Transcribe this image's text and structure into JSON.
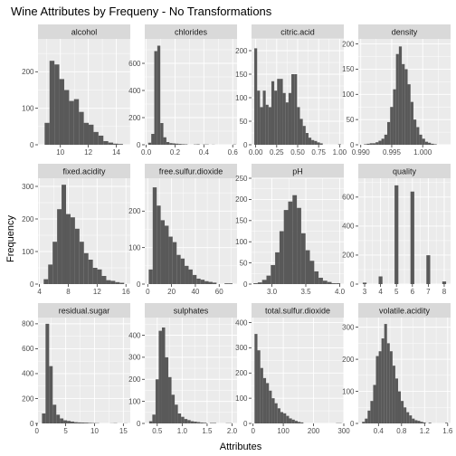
{
  "chart_data": {
    "type": "bar",
    "title": "Wine Attributes by Frequeny - No Transformations",
    "xlabel": "Attributes",
    "ylabel": "Frequency",
    "style": {
      "panel_bg": "#ebebeb",
      "strip_bg": "#d9d9d9",
      "bar_fill": "#595959",
      "grid": "#ffffff"
    },
    "facets": [
      {
        "name": "alcohol",
        "xlim": [
          8.4,
          15.0
        ],
        "ylim": [
          0,
          290
        ],
        "xticks": [
          10,
          12,
          14
        ],
        "xticklabels": [
          "10",
          "12",
          "14"
        ],
        "yticks": [
          0,
          100,
          200
        ],
        "yticklabels": [
          "0",
          "100",
          "200"
        ],
        "bin_width": 0.35,
        "bins": [
          9.05,
          9.4,
          9.75,
          10.1,
          10.45,
          10.8,
          11.15,
          11.5,
          11.85,
          12.2,
          12.55,
          12.9,
          13.25,
          13.6,
          13.95,
          14.3
        ],
        "counts": [
          60,
          230,
          220,
          180,
          150,
          120,
          125,
          90,
          60,
          55,
          35,
          25,
          10,
          6,
          3,
          2
        ]
      },
      {
        "name": "chlorides",
        "xlim": [
          -0.01,
          0.63
        ],
        "ylim": [
          0,
          780
        ],
        "xticks": [
          0.0,
          0.2,
          0.4,
          0.6
        ],
        "xticklabels": [
          "0.0",
          "0.2",
          "0.4",
          "0.6"
        ],
        "yticks": [
          0,
          200,
          400,
          600
        ],
        "yticklabels": [
          "0",
          "200",
          "400",
          "600"
        ],
        "bin_width": 0.021,
        "bins": [
          0.0245,
          0.0455,
          0.0665,
          0.0875,
          0.1085,
          0.1295,
          0.1505,
          0.1715,
          0.1925,
          0.2135,
          0.2345,
          0.2555,
          0.2765,
          0.3395,
          0.3605,
          0.4025,
          0.4235,
          0.4655,
          0.6125
        ],
        "counts": [
          15,
          80,
          690,
          730,
          160,
          55,
          20,
          12,
          10,
          8,
          6,
          4,
          3,
          2,
          3,
          2,
          2,
          1,
          2
        ]
      },
      {
        "name": "citric.acid",
        "xlim": [
          -0.05,
          1.05
        ],
        "ylim": [
          0,
          225
        ],
        "xticks": [
          0.0,
          0.25,
          0.5,
          0.75,
          1.0
        ],
        "xticklabels": [
          "0.00",
          "0.25",
          "0.50",
          "0.75",
          "1.00"
        ],
        "yticks": [
          0,
          50,
          100,
          150,
          200
        ],
        "yticklabels": [
          "0",
          "50",
          "100",
          "150",
          "200"
        ],
        "bin_width": 0.034,
        "bins": [
          0.0,
          0.034,
          0.068,
          0.102,
          0.136,
          0.17,
          0.204,
          0.238,
          0.272,
          0.306,
          0.34,
          0.374,
          0.408,
          0.442,
          0.476,
          0.51,
          0.544,
          0.578,
          0.612,
          0.646,
          0.68,
          0.714,
          0.748,
          0.782,
          1.0
        ],
        "counts": [
          205,
          115,
          80,
          115,
          85,
          80,
          135,
          115,
          140,
          140,
          110,
          90,
          110,
          150,
          150,
          80,
          55,
          40,
          25,
          15,
          10,
          8,
          5,
          3,
          1
        ]
      },
      {
        "name": "density",
        "xlim": [
          0.9896,
          1.0045
        ],
        "ylim": [
          0,
          210
        ],
        "xticks": [
          0.99,
          0.995,
          1.0
        ],
        "xticklabels": [
          "0.990",
          "0.995",
          "1.000"
        ],
        "yticks": [
          0,
          50,
          100,
          150,
          200
        ],
        "yticklabels": [
          "0",
          "50",
          "100",
          "150",
          "200"
        ],
        "bin_width": 0.00047,
        "bins": [
          0.99075,
          0.99122,
          0.99169,
          0.99216,
          0.99263,
          0.9931,
          0.99357,
          0.99404,
          0.99451,
          0.99498,
          0.99545,
          0.99592,
          0.99639,
          0.99686,
          0.99733,
          0.9978,
          0.99827,
          0.99874,
          0.99921,
          0.99968,
          1.00015,
          1.00062,
          1.00109,
          1.00156,
          1.00203
        ],
        "counts": [
          1,
          2,
          3,
          3,
          5,
          8,
          12,
          20,
          45,
          75,
          110,
          180,
          195,
          160,
          150,
          120,
          85,
          50,
          35,
          20,
          12,
          6,
          4,
          2,
          1
        ]
      },
      {
        "name": "fixed.acidity",
        "xlim": [
          3.8,
          16.6
        ],
        "ylim": [
          0,
          325
        ],
        "xticks": [
          4,
          8,
          12,
          16
        ],
        "xticklabels": [
          "4",
          "8",
          "12",
          "16"
        ],
        "yticks": [
          0,
          100,
          200,
          300
        ],
        "yticklabels": [
          "0",
          "100",
          "200",
          "300"
        ],
        "bin_width": 0.62,
        "bins": [
          4.9,
          5.52,
          6.14,
          6.76,
          7.38,
          8.0,
          8.62,
          9.24,
          9.86,
          10.48,
          11.1,
          11.72,
          12.34,
          12.96,
          13.58,
          14.2,
          14.82,
          15.44
        ],
        "counts": [
          15,
          60,
          130,
          230,
          305,
          215,
          205,
          170,
          130,
          95,
          75,
          50,
          45,
          25,
          12,
          10,
          6,
          4
        ]
      },
      {
        "name": "free.sulfur.dioxide",
        "xlim": [
          -2.5,
          75
        ],
        "ylim": [
          0,
          290
        ],
        "xticks": [
          0,
          20,
          40,
          60
        ],
        "xticklabels": [
          "0",
          "20",
          "40",
          "60"
        ],
        "yticks": [
          0,
          100,
          200
        ],
        "yticklabels": [
          "0",
          "100",
          "200"
        ],
        "bin_width": 3.35,
        "bins": [
          2.5,
          5.85,
          9.2,
          12.55,
          15.9,
          19.25,
          22.6,
          25.95,
          29.3,
          32.65,
          36.0,
          39.35,
          42.7,
          46.05,
          49.4,
          52.75,
          56.1,
          66.15,
          69.5
        ],
        "counts": [
          40,
          265,
          215,
          175,
          160,
          130,
          115,
          80,
          70,
          50,
          40,
          25,
          15,
          12,
          8,
          6,
          4,
          2,
          2
        ]
      },
      {
        "name": "pH",
        "xlim": [
          2.7,
          4.06
        ],
        "ylim": [
          0,
          250
        ],
        "xticks": [
          3.0,
          3.5,
          4.0
        ],
        "xticklabels": [
          "3.0",
          "3.5",
          "4.0"
        ],
        "yticks": [
          0,
          50,
          100,
          150,
          200,
          250
        ],
        "yticklabels": [
          "0",
          "50",
          "100",
          "150",
          "200",
          "250"
        ],
        "bin_width": 0.064,
        "bins": [
          2.76,
          2.824,
          2.888,
          2.952,
          3.016,
          3.08,
          3.144,
          3.208,
          3.272,
          3.336,
          3.4,
          3.464,
          3.528,
          3.592,
          3.656,
          3.72,
          3.784,
          3.848,
          3.912,
          3.976
        ],
        "counts": [
          2,
          4,
          10,
          20,
          45,
          75,
          125,
          175,
          195,
          210,
          180,
          120,
          80,
          55,
          30,
          15,
          8,
          5,
          2,
          2
        ]
      },
      {
        "name": "quality",
        "xlim": [
          2.6,
          8.4
        ],
        "ylim": [
          0,
          730
        ],
        "xticks": [
          3,
          4,
          5,
          6,
          7,
          8
        ],
        "xticklabels": [
          "3",
          "4",
          "5",
          "6",
          "7",
          "8"
        ],
        "yticks": [
          0,
          200,
          400,
          600
        ],
        "yticklabels": [
          "0",
          "200",
          "400",
          "600"
        ],
        "bin_width": 0.24,
        "bins": [
          3,
          4,
          5,
          6,
          7,
          8
        ],
        "counts": [
          10,
          53,
          681,
          638,
          199,
          18
        ]
      },
      {
        "name": "residual.sugar",
        "xlim": [
          0.2,
          16.2
        ],
        "ylim": [
          0,
          850
        ],
        "xticks": [
          0,
          5,
          10,
          15
        ],
        "xticklabels": [
          "0",
          "5",
          "10",
          "15"
        ],
        "yticks": [
          0,
          200,
          400,
          600,
          800
        ],
        "yticklabels": [
          "0",
          "200",
          "400",
          "600",
          "800"
        ],
        "bin_width": 0.62,
        "bins": [
          1.2,
          1.82,
          2.44,
          3.06,
          3.68,
          4.3,
          4.92,
          5.54,
          6.16,
          6.78,
          7.4,
          8.02,
          8.64,
          9.26,
          9.88,
          10.5,
          13.0,
          13.62,
          15.4
        ],
        "counts": [
          80,
          800,
          460,
          150,
          70,
          40,
          25,
          20,
          15,
          10,
          8,
          7,
          6,
          4,
          3,
          2,
          1,
          2,
          1
        ]
      },
      {
        "name": "sulphates",
        "xlim": [
          0.25,
          2.1
        ],
        "ylim": [
          0,
          480
        ],
        "xticks": [
          0.5,
          1.0,
          1.5,
          2.0
        ],
        "xticklabels": [
          "0.5",
          "1.0",
          "1.5",
          "2.0"
        ],
        "yticks": [
          0,
          100,
          200,
          300,
          400
        ],
        "yticklabels": [
          "0",
          "100",
          "200",
          "300",
          "400"
        ],
        "bin_width": 0.064,
        "bins": [
          0.37,
          0.434,
          0.498,
          0.562,
          0.626,
          0.69,
          0.754,
          0.818,
          0.882,
          0.946,
          1.01,
          1.074,
          1.138,
          1.202,
          1.266,
          1.33,
          1.394,
          1.458,
          1.586,
          1.65,
          1.906,
          1.97
        ],
        "counts": [
          10,
          40,
          200,
          420,
          435,
          300,
          210,
          130,
          85,
          45,
          30,
          20,
          15,
          10,
          8,
          6,
          4,
          3,
          2,
          2,
          1,
          1
        ]
      },
      {
        "name": "total.sulfur.dioxide",
        "xlim": [
          -5,
          300
        ],
        "ylim": [
          0,
          420
        ],
        "xticks": [
          0,
          100,
          200,
          300
        ],
        "xticklabels": [
          "0",
          "100",
          "200",
          "300"
        ],
        "yticks": [
          0,
          100,
          200,
          300,
          400
        ],
        "yticklabels": [
          "0",
          "100",
          "200",
          "300",
          "400"
        ],
        "bin_width": 9.5,
        "bins": [
          9.75,
          19.25,
          28.75,
          38.25,
          47.75,
          57.25,
          66.75,
          76.25,
          85.75,
          95.25,
          104.75,
          114.25,
          123.75,
          133.25,
          142.75,
          152.25,
          161.75,
          278.75,
          288.25
        ],
        "counts": [
          355,
          290,
          220,
          180,
          160,
          130,
          100,
          80,
          60,
          45,
          40,
          30,
          20,
          15,
          10,
          6,
          4,
          1,
          1
        ]
      },
      {
        "name": "volatile.acidity",
        "xlim": [
          0.05,
          1.65
        ],
        "ylim": [
          0,
          330
        ],
        "xticks": [
          0.4,
          0.8,
          1.2,
          1.6
        ],
        "xticklabels": [
          "0.4",
          "0.8",
          "1.2",
          "1.6"
        ],
        "yticks": [
          0,
          100,
          200,
          300
        ],
        "yticklabels": [
          "0",
          "100",
          "200",
          "300"
        ],
        "bin_width": 0.048,
        "bins": [
          0.14,
          0.188,
          0.236,
          0.284,
          0.332,
          0.38,
          0.428,
          0.476,
          0.524,
          0.572,
          0.62,
          0.668,
          0.716,
          0.764,
          0.812,
          0.86,
          0.908,
          0.956,
          1.004,
          1.052,
          1.1,
          1.148,
          1.196,
          1.292,
          1.58
        ],
        "counts": [
          5,
          15,
          40,
          70,
          120,
          210,
          225,
          265,
          310,
          250,
          225,
          180,
          140,
          100,
          70,
          50,
          35,
          25,
          15,
          10,
          8,
          5,
          3,
          2,
          2
        ]
      }
    ]
  }
}
